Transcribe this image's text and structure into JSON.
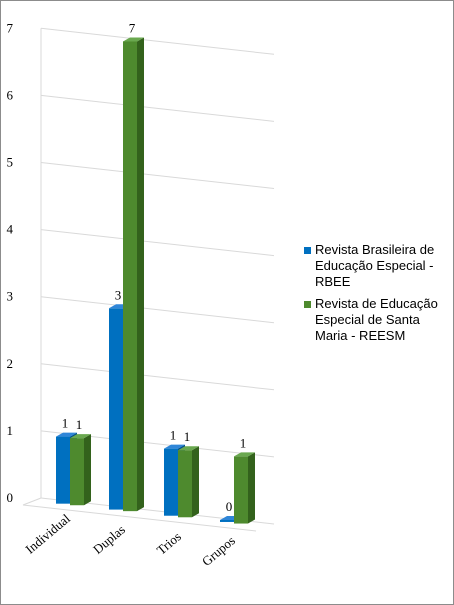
{
  "chart_data": {
    "type": "bar",
    "categories": [
      "Individual",
      "Duplas",
      "Trios",
      "Grupos"
    ],
    "series": [
      {
        "name": "Revista Brasileira de Educação Especial - RBEE",
        "values": [
          1,
          3,
          1,
          0
        ],
        "color": "#0070c0",
        "top_color": "#2f86d8",
        "side_color": "#004f8c"
      },
      {
        "name": "Revista de Educação Especial de Santa Maria - REESM",
        "values": [
          1,
          7,
          1,
          1
        ],
        "color": "#4e8a2e",
        "top_color": "#6aa84f",
        "side_color": "#33621c"
      }
    ],
    "yticks": [
      "0",
      "1",
      "2",
      "3",
      "4",
      "5",
      "6",
      "7"
    ],
    "ylim": [
      0,
      7
    ],
    "data_labels": [
      [
        "1",
        "3",
        "1",
        "0"
      ],
      [
        "1",
        "7",
        "1",
        "1"
      ]
    ],
    "grid": true,
    "gridline_color": "#d9d9d9",
    "legend_position": "right"
  }
}
